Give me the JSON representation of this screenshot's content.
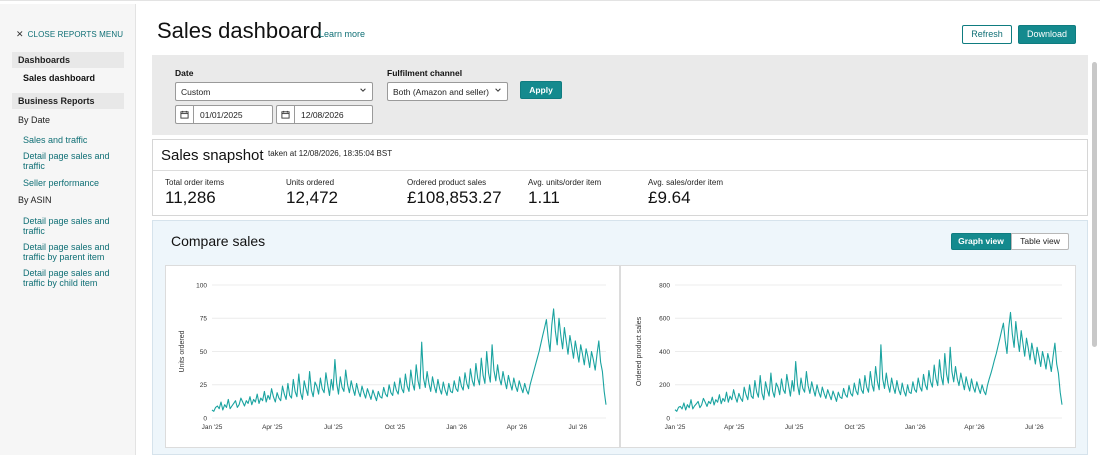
{
  "sidebar": {
    "close_menu": "CLOSE REPORTS MENU",
    "dashboards_header": "Dashboards",
    "sales_dashboard": "Sales dashboard",
    "business_reports_header": "Business Reports",
    "by_date": "By Date",
    "by_date_links": [
      "Sales and traffic",
      "Detail page sales and traffic",
      "Seller performance"
    ],
    "by_asin": "By ASIN",
    "by_asin_links": [
      "Detail page sales and traffic",
      "Detail page sales and traffic by parent item",
      "Detail page sales and traffic by child item"
    ]
  },
  "header": {
    "title": "Sales dashboard",
    "learn_more": "Learn more",
    "refresh": "Refresh",
    "download": "Download"
  },
  "filters": {
    "date_label": "Date",
    "date_range_value": "Custom",
    "start_date": "01/01/2025",
    "end_date": "12/08/2026",
    "fulfilment_label": "Fulfilment channel",
    "fulfilment_value": "Both (Amazon and seller)",
    "apply": "Apply"
  },
  "snapshot": {
    "title": "Sales snapshot",
    "taken_at": "taken at 12/08/2026, 18:35:04 BST",
    "metrics": [
      {
        "label": "Total order items",
        "value": "11,286"
      },
      {
        "label": "Units ordered",
        "value": "12,472"
      },
      {
        "label": "Ordered product sales",
        "value": "£108,853.27"
      },
      {
        "label": "Avg. units/order item",
        "value": "1.11"
      },
      {
        "label": "Avg. sales/order item",
        "value": "£9.64"
      }
    ]
  },
  "compare": {
    "title": "Compare sales",
    "graph_view": "Graph view",
    "table_view": "Table view"
  },
  "colors": {
    "accent": "#148a8e",
    "line": "#1aa3a0"
  },
  "chart_data": [
    {
      "type": "line",
      "ylabel": "Units ordered",
      "ylim": [
        0,
        100
      ],
      "yticks": [
        0,
        25,
        50,
        75,
        100
      ],
      "xticks": [
        "Jan '25",
        "Apr '25",
        "Jul '25",
        "Oct '25",
        "Jan '26",
        "Apr '26",
        "Jul '26"
      ],
      "x_start": "2025-01-01",
      "x_end": "2026-08-12",
      "series": [
        {
          "name": "",
          "values": [
            6,
            5,
            8,
            9,
            7,
            12,
            6,
            10,
            8,
            14,
            7,
            9,
            11,
            13,
            8,
            10,
            15,
            12,
            9,
            13,
            11,
            16,
            10,
            14,
            12,
            18,
            11,
            15,
            13,
            20,
            12,
            17,
            14,
            22,
            16,
            12,
            19,
            15,
            13,
            24,
            18,
            14,
            26,
            17,
            15,
            29,
            20,
            16,
            33,
            19,
            14,
            28,
            22,
            17,
            35,
            21,
            16,
            27,
            24,
            18,
            30,
            22,
            19,
            34,
            25,
            17,
            29,
            21,
            44,
            26,
            18,
            31,
            23,
            20,
            36,
            25,
            19,
            28,
            22,
            17,
            26,
            20,
            16,
            24,
            19,
            15,
            22,
            18,
            14,
            21,
            17,
            13,
            20,
            16,
            15,
            23,
            18,
            16,
            25,
            19,
            17,
            27,
            21,
            18,
            30,
            22,
            19,
            33,
            24,
            20,
            36,
            26,
            21,
            40,
            28,
            22,
            57,
            30,
            23,
            35,
            26,
            20,
            31,
            24,
            19,
            29,
            22,
            18,
            27,
            21,
            17,
            26,
            20,
            19,
            28,
            22,
            20,
            31,
            24,
            21,
            34,
            26,
            22,
            37,
            28,
            24,
            41,
            30,
            25,
            45,
            32,
            26,
            50,
            34,
            27,
            55,
            36,
            28,
            40,
            30,
            25,
            35,
            28,
            22,
            32,
            26,
            21,
            30,
            24,
            20,
            28,
            23,
            19,
            26,
            21,
            18,
            25,
            30,
            35,
            40,
            45,
            50,
            56,
            62,
            68,
            74,
            60,
            50,
            70,
            82,
            65,
            55,
            75,
            62,
            52,
            68,
            58,
            48,
            62,
            54,
            45,
            58,
            50,
            42,
            55,
            48,
            40,
            52,
            46,
            38,
            50,
            44,
            36,
            48,
            58,
            42,
            35,
            20,
            10
          ]
        }
      ]
    },
    {
      "type": "line",
      "ylabel": "Ordered product sales",
      "ylim": [
        0,
        800
      ],
      "yticks": [
        0,
        200,
        400,
        600,
        800
      ],
      "xticks": [
        "Jan '25",
        "Apr '25",
        "Jul '25",
        "Oct '25",
        "Jan '26",
        "Apr '26",
        "Jul '26"
      ],
      "x_start": "2025-01-01",
      "x_end": "2026-08-12",
      "series": [
        {
          "name": "",
          "values": [
            50,
            40,
            65,
            70,
            55,
            90,
            48,
            80,
            62,
            110,
            55,
            72,
            85,
            100,
            62,
            78,
            118,
            95,
            70,
            100,
            86,
            125,
            78,
            110,
            95,
            140,
            86,
            118,
            100,
            155,
            95,
            132,
            110,
            170,
            125,
            95,
            148,
            118,
            100,
            185,
            140,
            110,
            200,
            132,
            118,
            225,
            155,
            125,
            255,
            148,
            110,
            218,
            170,
            132,
            270,
            162,
            125,
            210,
            186,
            140,
            235,
            170,
            148,
            262,
            195,
            132,
            225,
            162,
            340,
            200,
            140,
            240,
            178,
            155,
            280,
            195,
            148,
            218,
            170,
            132,
            200,
            155,
            125,
            186,
            148,
            118,
            170,
            140,
            110,
            162,
            132,
            100,
            155,
            125,
            118,
            178,
            140,
            125,
            195,
            148,
            132,
            210,
            162,
            140,
            235,
            170,
            148,
            255,
            186,
            155,
            280,
            200,
            162,
            310,
            218,
            170,
            440,
            235,
            178,
            270,
            200,
            155,
            240,
            186,
            148,
            225,
            170,
            140,
            210,
            162,
            132,
            200,
            155,
            148,
            218,
            170,
            155,
            240,
            186,
            162,
            262,
            200,
            170,
            285,
            218,
            186,
            318,
            235,
            195,
            350,
            248,
            200,
            388,
            262,
            210,
            425,
            280,
            218,
            310,
            235,
            195,
            270,
            218,
            170,
            248,
            200,
            162,
            235,
            186,
            155,
            218,
            178,
            148,
            200,
            162,
            140,
            195,
            235,
            270,
            310,
            350,
            388,
            435,
            480,
            525,
            570,
            465,
            388,
            540,
            635,
            505,
            425,
            580,
            480,
            400,
            525,
            450,
            372,
            480,
            418,
            350,
            450,
            388,
            325,
            425,
            372,
            310,
            400,
            355,
            295,
            388,
            340,
            280,
            372,
            450,
            325,
            270,
            155,
            80
          ]
        }
      ]
    }
  ]
}
